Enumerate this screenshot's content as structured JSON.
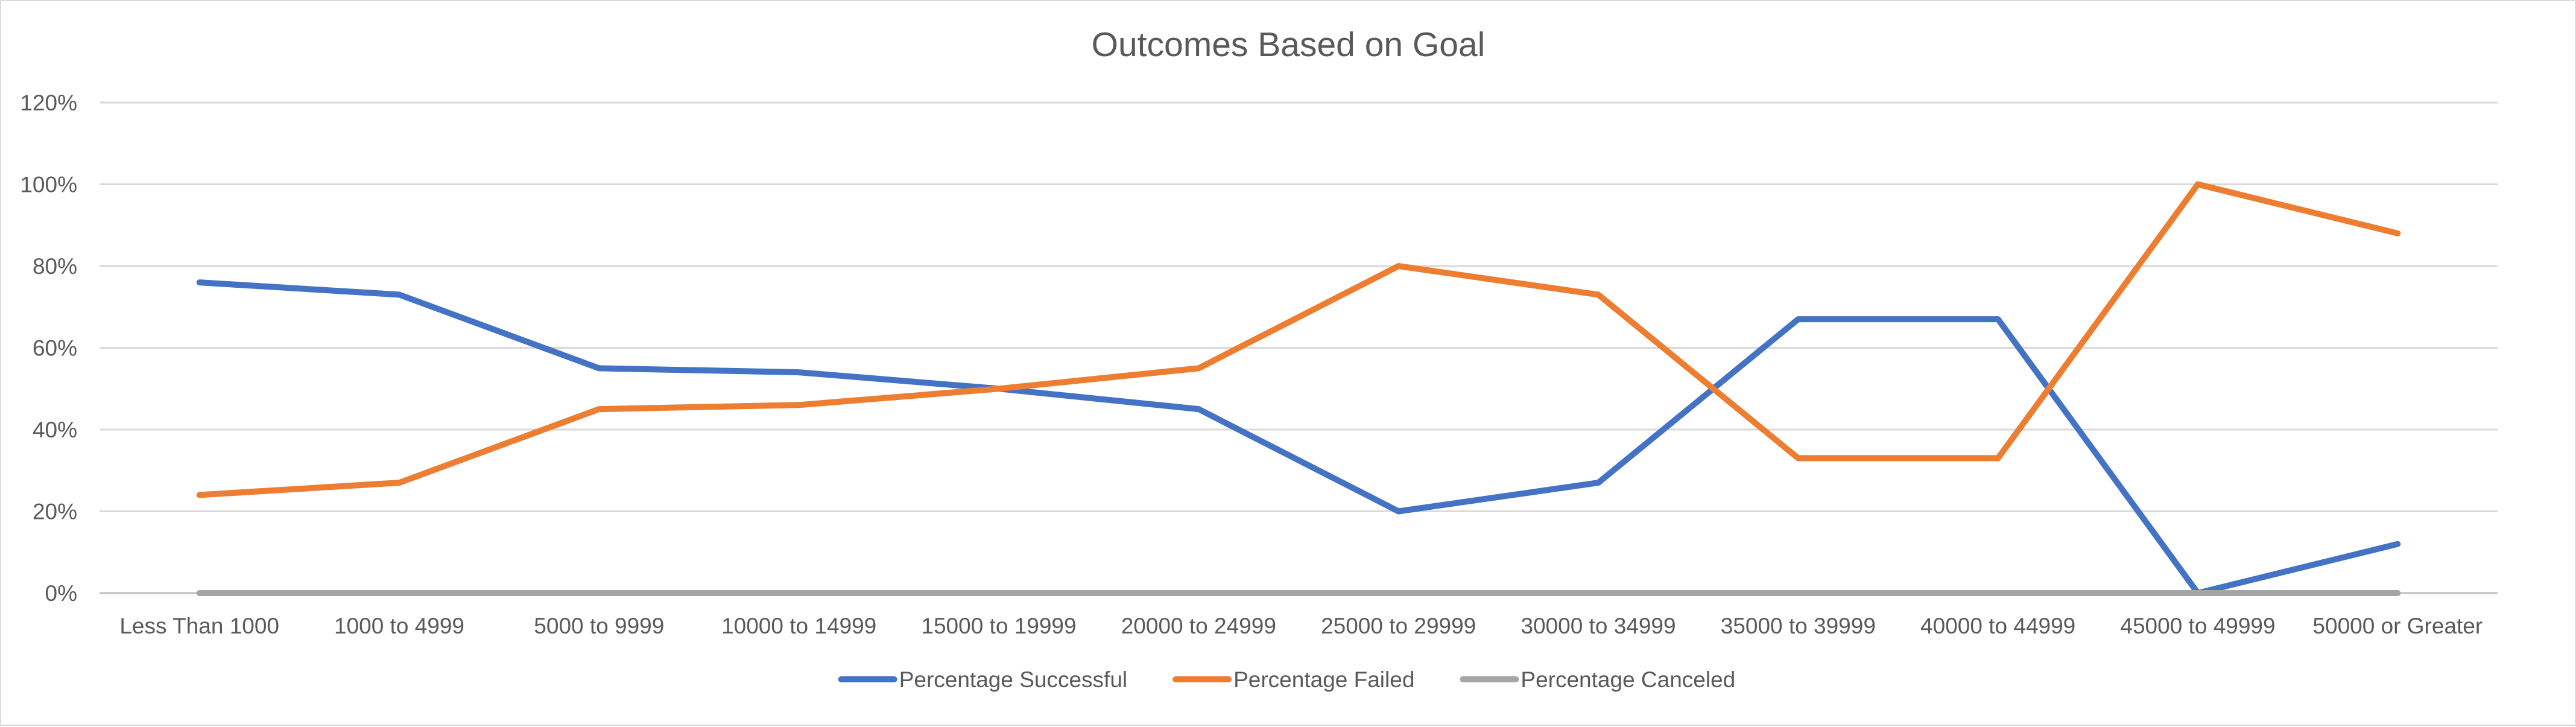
{
  "chart_data": {
    "type": "line",
    "title": "Outcomes Based on Goal",
    "xlabel": "",
    "ylabel": "",
    "categories": [
      "Less Than 1000",
      "1000 to 4999",
      "5000 to 9999",
      "10000 to 14999",
      "15000 to 19999",
      "20000 to 24999",
      "25000 to 29999",
      "30000 to 34999",
      "35000 to 39999",
      "40000 to 44999",
      "45000 to 49999",
      "50000 or Greater"
    ],
    "ylim": [
      0,
      1.2
    ],
    "yticks": [
      0,
      0.2,
      0.4,
      0.6,
      0.8,
      1.0,
      1.2
    ],
    "ytick_labels": [
      "0%",
      "20%",
      "40%",
      "60%",
      "80%",
      "100%",
      "120%"
    ],
    "grid": true,
    "legend_position": "bottom",
    "series": [
      {
        "name": "Percentage Successful",
        "color": "#4472C4",
        "values": [
          0.76,
          0.73,
          0.55,
          0.54,
          0.5,
          0.45,
          0.2,
          0.27,
          0.67,
          0.67,
          0.0,
          0.12
        ]
      },
      {
        "name": "Percentage Failed",
        "color": "#ED7D31",
        "values": [
          0.24,
          0.27,
          0.45,
          0.46,
          0.5,
          0.55,
          0.8,
          0.73,
          0.33,
          0.33,
          1.0,
          0.88
        ]
      },
      {
        "name": "Percentage Canceled",
        "color": "#A5A5A5",
        "values": [
          0,
          0,
          0,
          0,
          0,
          0,
          0,
          0,
          0,
          0,
          0,
          0
        ]
      }
    ]
  }
}
